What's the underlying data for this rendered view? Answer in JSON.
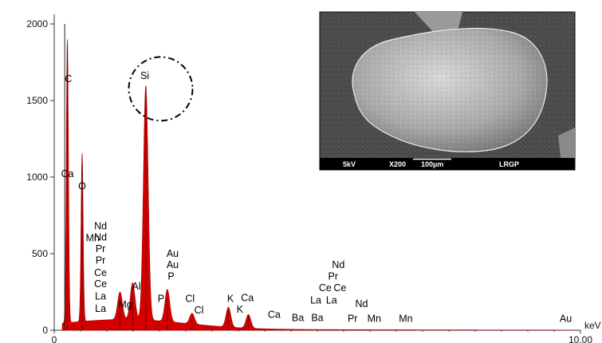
{
  "chart_data": {
    "type": "line",
    "title": "",
    "xlabel": "keV",
    "ylabel": "",
    "xlim": [
      0,
      10
    ],
    "ylim": [
      0,
      2000
    ],
    "x_ticks": [
      {
        "value": 0,
        "label": "0"
      },
      {
        "value": 10,
        "label": "10.00"
      }
    ],
    "y_ticks": [
      {
        "value": 0,
        "label": "0"
      },
      {
        "value": 500,
        "label": "500"
      },
      {
        "value": 1000,
        "label": "1000"
      },
      {
        "value": 1500,
        "label": "1500"
      },
      {
        "value": 2000,
        "label": "2000"
      }
    ],
    "grid": false,
    "fill_color": "#d40000",
    "series": [
      {
        "values": [
          [
            0.25,
            1850
          ],
          [
            0.53,
            1100
          ],
          [
            1.74,
            1530
          ],
          [
            1.25,
            180
          ],
          [
            1.49,
            240
          ],
          [
            2.15,
            210
          ],
          [
            2.62,
            70
          ],
          [
            3.31,
            130
          ],
          [
            3.69,
            90
          ]
        ]
      }
    ],
    "peak_labels": [
      {
        "text": "C",
        "x": 0.27,
        "y": 1620
      },
      {
        "text": "Ca",
        "x": 0.25,
        "y": 1000
      },
      {
        "text": "O",
        "x": 0.53,
        "y": 920
      },
      {
        "text": "Nd",
        "x": 0.88,
        "y": 660
      },
      {
        "text": "Mn",
        "x": 0.73,
        "y": 580
      },
      {
        "text": "Nd",
        "x": 0.88,
        "y": 585
      },
      {
        "text": "Pr",
        "x": 0.88,
        "y": 510
      },
      {
        "text": "Pr",
        "x": 0.88,
        "y": 435
      },
      {
        "text": "Ce",
        "x": 0.88,
        "y": 355
      },
      {
        "text": "Ce",
        "x": 0.88,
        "y": 280
      },
      {
        "text": "La",
        "x": 0.88,
        "y": 200
      },
      {
        "text": "La",
        "x": 0.88,
        "y": 120
      },
      {
        "text": "Mg",
        "x": 1.35,
        "y": 145
      },
      {
        "text": "Al",
        "x": 1.56,
        "y": 265
      },
      {
        "text": "Si",
        "x": 1.72,
        "y": 1640
      },
      {
        "text": "Au",
        "x": 2.25,
        "y": 480
      },
      {
        "text": "Au",
        "x": 2.25,
        "y": 405
      },
      {
        "text": "P",
        "x": 2.22,
        "y": 330
      },
      {
        "text": "P",
        "x": 2.03,
        "y": 185
      },
      {
        "text": "Cl",
        "x": 2.58,
        "y": 185
      },
      {
        "text": "Cl",
        "x": 2.75,
        "y": 110
      },
      {
        "text": "K",
        "x": 3.35,
        "y": 185
      },
      {
        "text": "Ca",
        "x": 3.67,
        "y": 190
      },
      {
        "text": "K",
        "x": 3.53,
        "y": 115
      },
      {
        "text": "Ca",
        "x": 4.18,
        "y": 80
      },
      {
        "text": "Nd",
        "x": 5.4,
        "y": 405
      },
      {
        "text": "Pr",
        "x": 5.3,
        "y": 330
      },
      {
        "text": "Ce",
        "x": 5.15,
        "y": 255
      },
      {
        "text": "Ce",
        "x": 5.43,
        "y": 255
      },
      {
        "text": "La",
        "x": 4.97,
        "y": 175
      },
      {
        "text": "La",
        "x": 5.27,
        "y": 175
      },
      {
        "text": "Ba",
        "x": 4.63,
        "y": 60
      },
      {
        "text": "Ba",
        "x": 5.0,
        "y": 60
      },
      {
        "text": "Nd",
        "x": 5.84,
        "y": 150
      },
      {
        "text": "Pr",
        "x": 5.67,
        "y": 55
      },
      {
        "text": "Mn",
        "x": 6.08,
        "y": 55
      },
      {
        "text": "Mn",
        "x": 6.68,
        "y": 55
      },
      {
        "text": "Au",
        "x": 9.72,
        "y": 55
      }
    ],
    "highlight_circle": {
      "label": "Si",
      "x": 1.72,
      "y": 1550
    }
  },
  "inset_image": {
    "description_bar": [
      "5kV",
      "X200",
      "100µm",
      "LRGP"
    ]
  }
}
